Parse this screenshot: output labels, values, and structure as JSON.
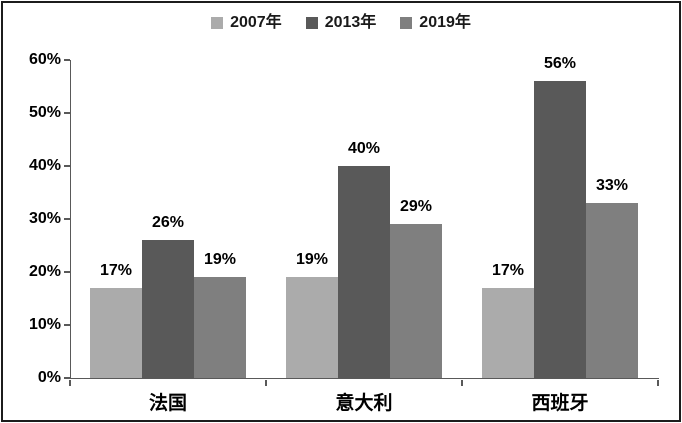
{
  "chart": {
    "background_color": "#ffffff",
    "frame_border_color": "#1c1c1c",
    "axis_color": "#595959",
    "text_color": "#000000"
  },
  "chart_data": {
    "type": "bar",
    "title": "",
    "categories": [
      "法国",
      "意大利",
      "西班牙"
    ],
    "series": [
      {
        "name": "2007年",
        "color": "#ABABAB",
        "values": [
          17,
          19,
          17
        ]
      },
      {
        "name": "2013年",
        "color": "#595959",
        "values": [
          26,
          40,
          56
        ]
      },
      {
        "name": "2019年",
        "color": "#7F7F7F",
        "values": [
          19,
          29,
          33
        ]
      }
    ],
    "data_labels": [
      [
        "17%",
        "19%",
        "17%"
      ],
      [
        "26%",
        "40%",
        "56%"
      ],
      [
        "19%",
        "29%",
        "33%"
      ]
    ],
    "data_label_suffix": "%",
    "y_axis": {
      "min": 0,
      "max": 60,
      "step": 10,
      "tick_labels": [
        "0%",
        "10%",
        "20%",
        "30%",
        "40%",
        "50%",
        "60%"
      ]
    },
    "x_axis": {
      "tick_labels": [
        "法国",
        "意大利",
        "西班牙"
      ]
    },
    "grid": false,
    "legend_position": "top-center"
  }
}
